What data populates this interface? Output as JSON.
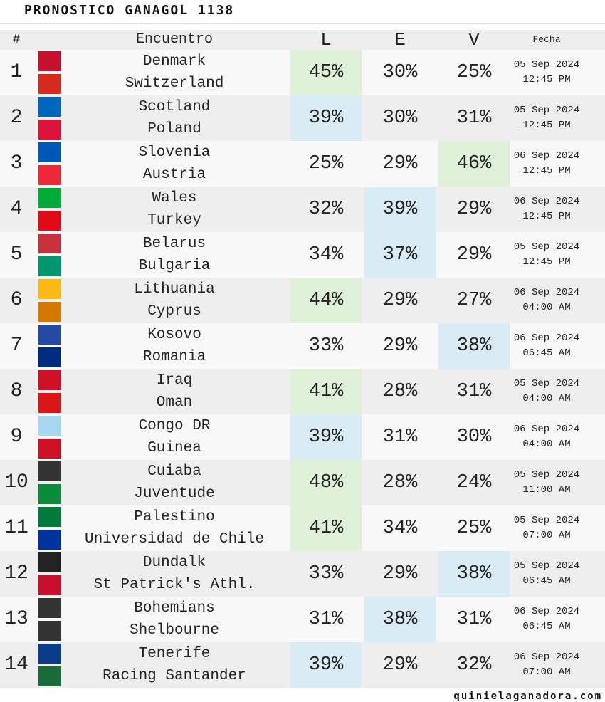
{
  "header": {
    "title": "PRONOSTICO GANAGOL 1138",
    "columns": [
      "#",
      "Encuentro",
      "L",
      "E",
      "V",
      "Fecha"
    ]
  },
  "rows": [
    {
      "num": "1",
      "home": "Denmark",
      "away": "Switzerland",
      "L": "45%",
      "E": "30%",
      "V": "25%",
      "date": "05 Sep 2024",
      "time": "12:45 PM"
    },
    {
      "num": "2",
      "home": "Scotland",
      "away": "Poland",
      "L": "39%",
      "E": "30%",
      "V": "31%",
      "date": "05 Sep 2024",
      "time": "12:45 PM"
    },
    {
      "num": "3",
      "home": "Slovenia",
      "away": "Austria",
      "L": "25%",
      "E": "29%",
      "V": "46%",
      "date": "06 Sep 2024",
      "time": "12:45 PM"
    },
    {
      "num": "4",
      "home": "Wales",
      "away": "Turkey",
      "L": "32%",
      "E": "39%",
      "V": "29%",
      "date": "06 Sep 2024",
      "time": "12:45 PM"
    },
    {
      "num": "5",
      "home": "Belarus",
      "away": "Bulgaria",
      "L": "34%",
      "E": "37%",
      "V": "29%",
      "date": "05 Sep 2024",
      "time": "12:45 PM"
    },
    {
      "num": "6",
      "home": "Lithuania",
      "away": "Cyprus",
      "L": "44%",
      "E": "29%",
      "V": "27%",
      "date": "06 Sep 2024",
      "time": "04:00 AM"
    },
    {
      "num": "7",
      "home": "Kosovo",
      "away": "Romania",
      "L": "33%",
      "E": "29%",
      "V": "38%",
      "date": "06 Sep 2024",
      "time": "06:45 AM"
    },
    {
      "num": "8",
      "home": "Iraq",
      "away": "Oman",
      "L": "41%",
      "E": "28%",
      "V": "31%",
      "date": "05 Sep 2024",
      "time": "04:00 AM"
    },
    {
      "num": "9",
      "home": "Congo DR",
      "away": "Guinea",
      "L": "39%",
      "E": "31%",
      "V": "30%",
      "date": "06 Sep 2024",
      "time": "04:00 AM"
    },
    {
      "num": "10",
      "home": "Cuiaba",
      "away": "Juventude",
      "L": "48%",
      "E": "28%",
      "V": "24%",
      "date": "05 Sep 2024",
      "time": "11:00 AM"
    },
    {
      "num": "11",
      "home": "Palestino",
      "away": "Universidad de Chile",
      "L": "41%",
      "E": "34%",
      "V": "25%",
      "date": "05 Sep 2024",
      "time": "07:00 AM"
    },
    {
      "num": "12",
      "home": "Dundalk",
      "away": "St Patrick's Athl.",
      "L": "33%",
      "E": "29%",
      "V": "38%",
      "date": "05 Sep 2024",
      "time": "06:45 AM"
    },
    {
      "num": "13",
      "home": "Bohemians",
      "away": "Shelbourne",
      "L": "31%",
      "E": "38%",
      "V": "31%",
      "date": "06 Sep 2024",
      "time": "06:45 AM"
    },
    {
      "num": "14",
      "home": "Tenerife",
      "away": "Racing Santander",
      "L": "39%",
      "E": "29%",
      "V": "32%",
      "date": "06 Sep 2024",
      "time": "07:00 AM"
    }
  ],
  "footer": "quinielaganadora.com"
}
